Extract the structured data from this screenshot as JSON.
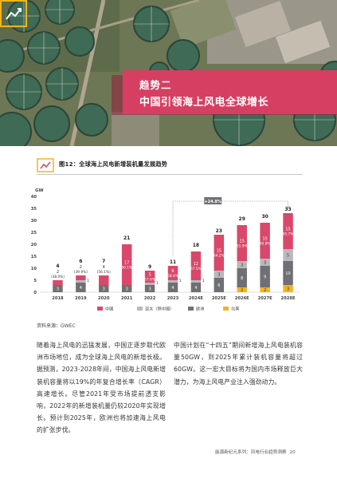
{
  "hero": {
    "trend_no": "趋势二",
    "trend_title": "中国引领海上风电全球增长"
  },
  "chart": {
    "title": "图12：全球海上风电新增装机量发展趋势",
    "source": "资料来源：GWEC",
    "colors": {
      "china": "#d9486b",
      "apac": "#b9b9bd",
      "europe": "#6f6f74",
      "na": "#f2b51b"
    }
  },
  "chart_data": {
    "type": "bar",
    "stacked": true,
    "title": "图12：全球海上风电新增装机量发展趋势",
    "ylabel": "GW",
    "ylim": [
      0,
      40
    ],
    "yticks": [
      0,
      5,
      10,
      15,
      20,
      25,
      30,
      35,
      40
    ],
    "categories": [
      "2018",
      "2019",
      "2020",
      "2021",
      "2022",
      "2023",
      "2024E",
      "2025E",
      "2026E",
      "2027E",
      "2028E"
    ],
    "series": [
      {
        "name": "中国",
        "values": [
          2,
          2,
          4,
          17,
          5,
          6,
          12,
          15,
          15,
          15,
          15
        ],
        "share_labels": [
          "(38.0%)",
          "(39.9%)",
          "(56.1%)",
          "(80.1%)",
          "(57.6%)",
          "(58.4%)",
          "(67.5%)",
          "(64.2%)",
          "(51.9%)",
          "(49.8%)",
          "(45.7%)"
        ]
      },
      {
        "name": "亚太（除中国）",
        "values": [
          0,
          1,
          0,
          0,
          1,
          1,
          1,
          3,
          3,
          3,
          5
        ]
      },
      {
        "name": "欧洲",
        "values": [
          3,
          4,
          3,
          3,
          3,
          4,
          4,
          6,
          8,
          9,
          10
        ]
      },
      {
        "name": "北美",
        "values": [
          0,
          0,
          0,
          0,
          0,
          0,
          0,
          0,
          2,
          2,
          3
        ]
      }
    ],
    "totals": [
      4,
      6,
      7,
      21,
      9,
      11,
      18,
      23,
      29,
      30,
      33
    ],
    "annotation": "+24.8%",
    "legend_position": "bottom",
    "grid": false
  },
  "body": {
    "left": "随着海上风电的迅猛发展，中国正逐步取代欧洲市场地位，成为全球海上风电的新增长极。据预测，2023-2028年间，中国海上风电新增装机容量将以19%的年复合增长率（CAGR）高速增长。尽管2021年受市场提前透支影响，2022年的新增装机量仍较2020年实现增长。预计到2025年，欧洲也将加速海上风电的扩张步伐。",
    "right": "中国计划在“十四五”期间新增海上风电装机容量50GW，到2025年累计装机容量将超过60GW。这一宏大目标将为国内市场释放巨大潜力，为海上风电产业注入强劲动力。"
  },
  "footer": {
    "series": "能源新纪元系列：风电行业趋势洞察",
    "page": "20"
  }
}
